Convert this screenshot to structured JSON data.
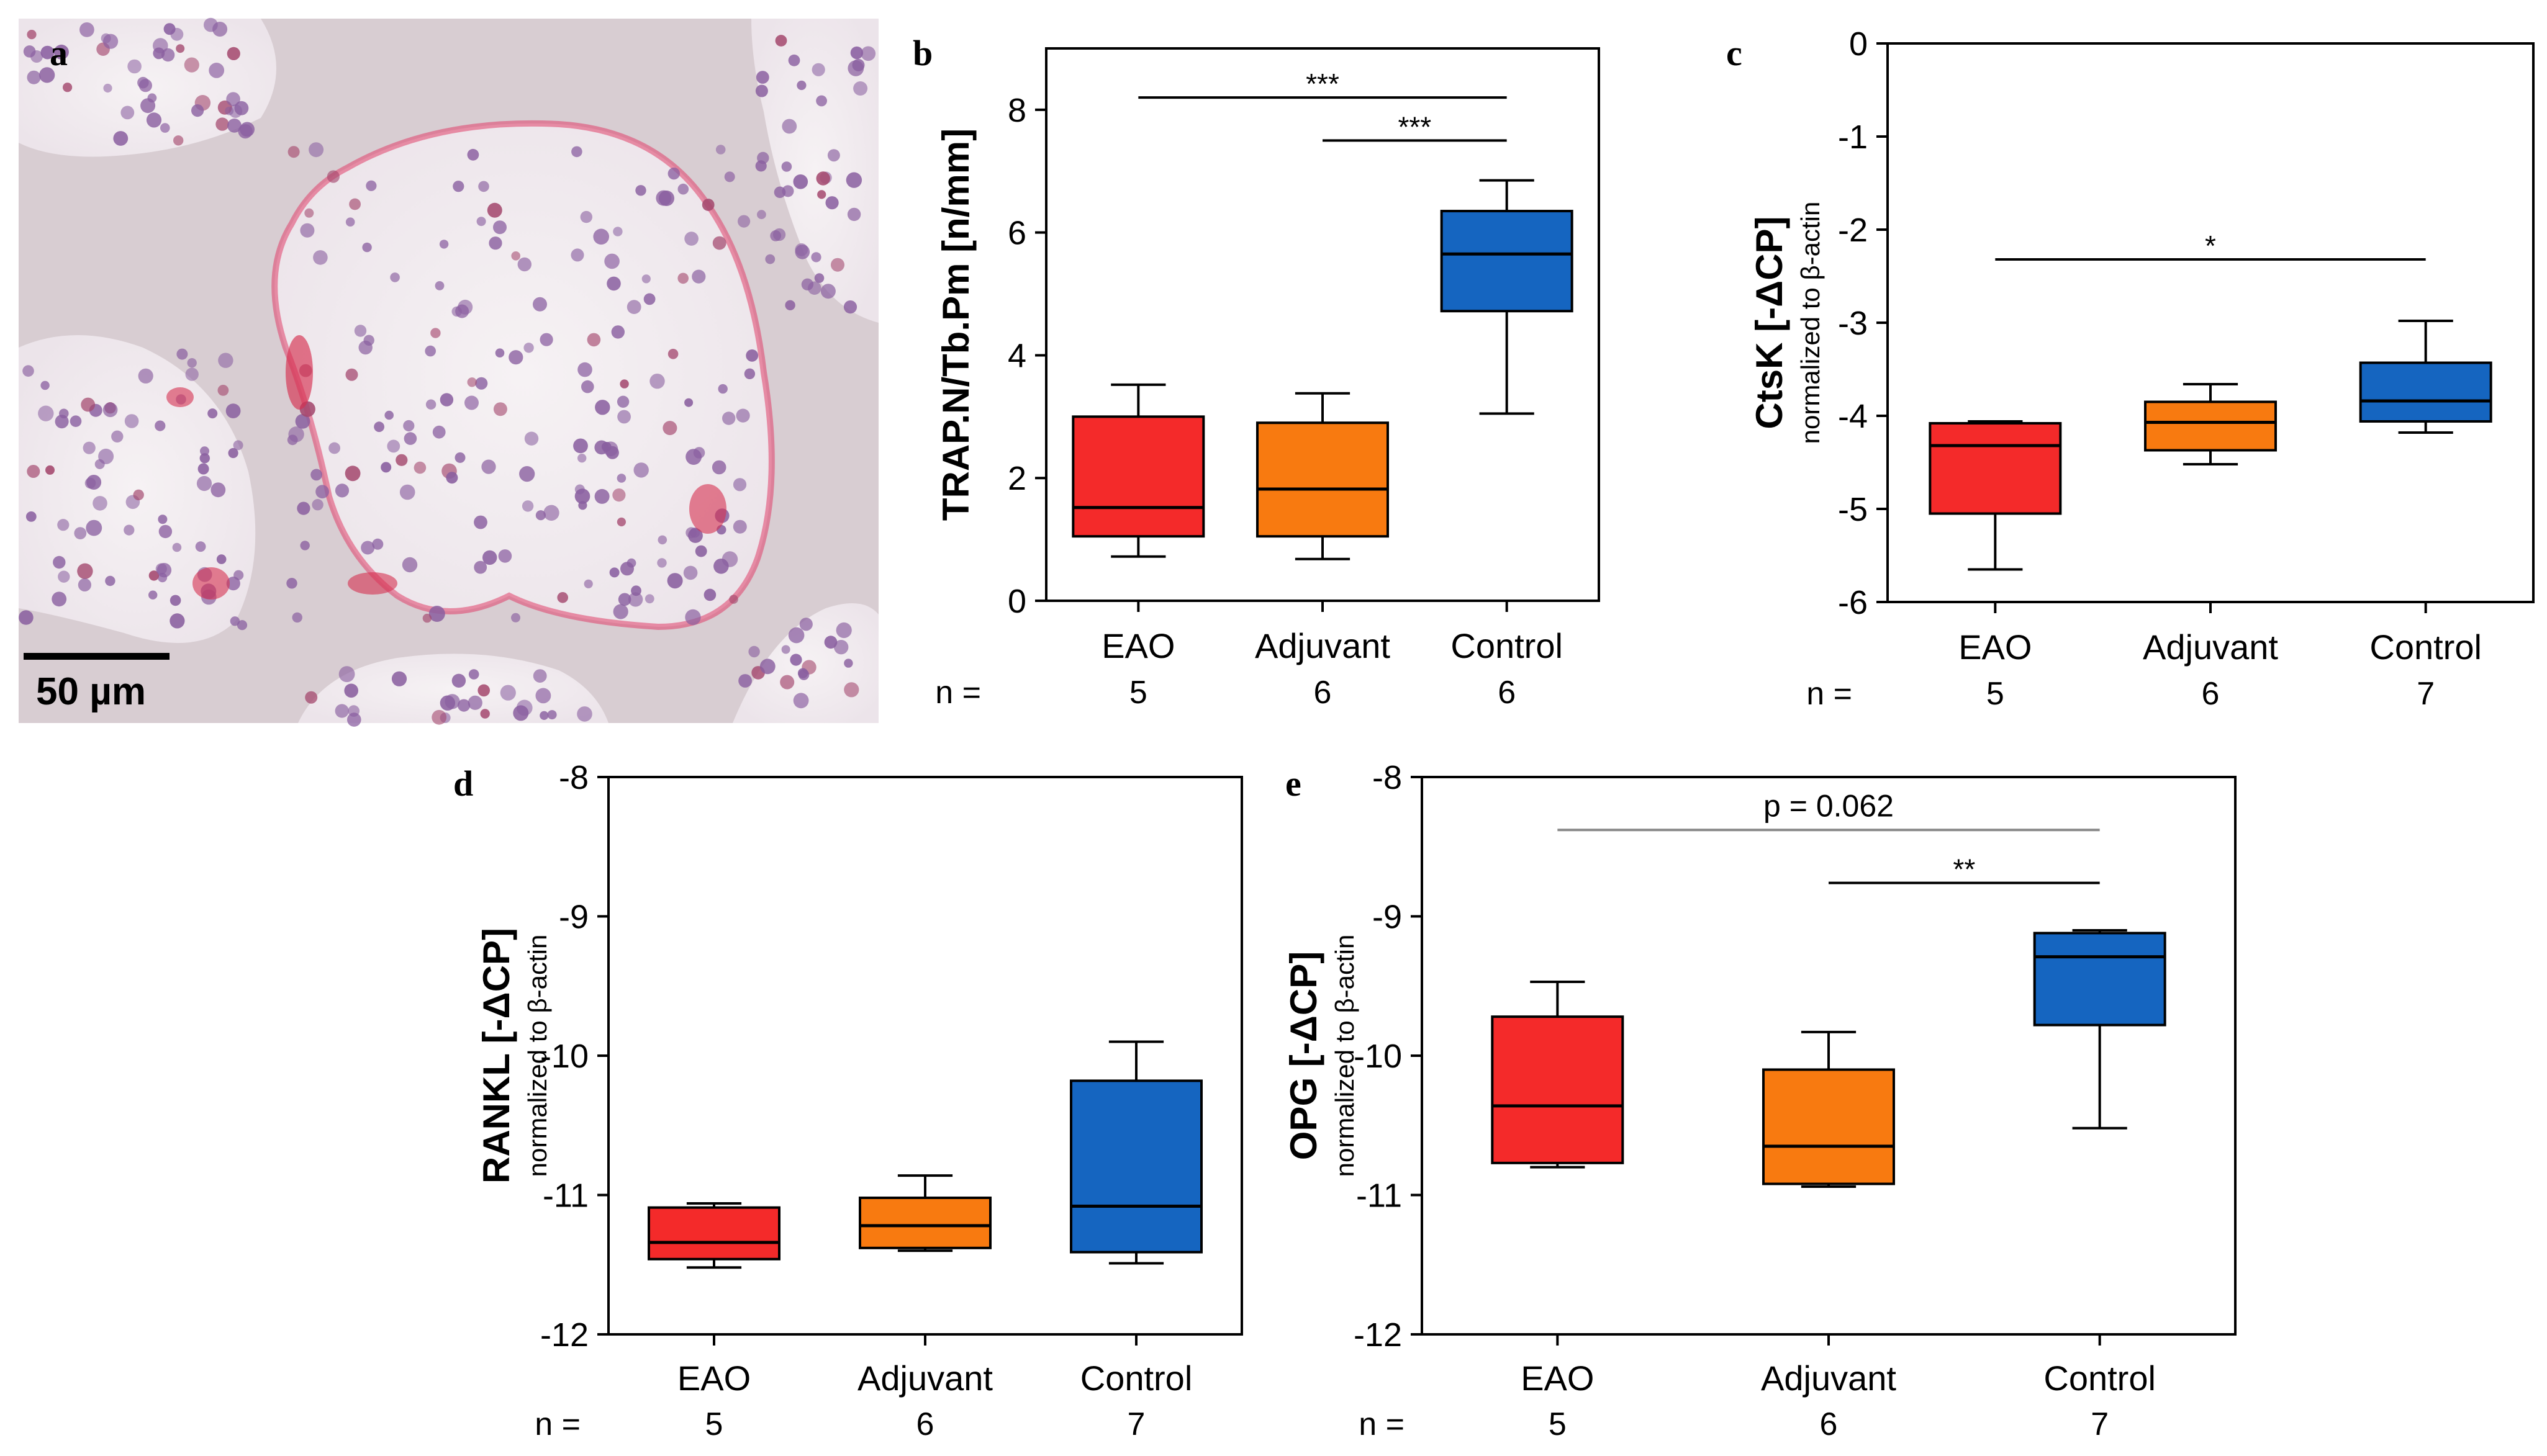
{
  "figure": {
    "micrograph": {
      "letter": "a",
      "scale_bar_label": "50 µm"
    }
  },
  "colors": {
    "eao": "#f42a2a",
    "adjuvant": "#f87a10",
    "control": "#1565c0",
    "significance_bar": "#000000",
    "trend_bar": "#888888"
  },
  "chart_data": [
    {
      "id": "b",
      "type": "box",
      "letter": "b",
      "ylabel": "TRAP.N/Tb.Pm [n/mm]",
      "ylabel2": "",
      "ylim": [
        0,
        9
      ],
      "yticks": [
        0,
        2,
        4,
        6,
        8
      ],
      "n_label": "n =",
      "categories": [
        "EAO",
        "Adjuvant",
        "Control"
      ],
      "n": [
        "5",
        "6",
        "6"
      ],
      "boxes": [
        {
          "group": "EAO",
          "whisker_low": 0.72,
          "q1": 1.05,
          "median": 1.52,
          "q3": 3.0,
          "whisker_high": 3.52
        },
        {
          "group": "Adjuvant",
          "whisker_low": 0.68,
          "q1": 1.05,
          "median": 1.82,
          "q3": 2.9,
          "whisker_high": 3.38
        },
        {
          "group": "Control",
          "whisker_low": 3.05,
          "q1": 4.72,
          "median": 5.65,
          "q3": 6.35,
          "whisker_high": 6.85
        }
      ],
      "significance": [
        {
          "from": "EAO",
          "to": "Control",
          "y": 8.2,
          "label": "***",
          "style": "black"
        },
        {
          "from": "Adjuvant",
          "to": "Control",
          "y": 7.5,
          "label": "***",
          "style": "black"
        }
      ]
    },
    {
      "id": "c",
      "type": "box",
      "letter": "c",
      "ylabel": "CtsK [-ΔCP]",
      "ylabel2": "normalized to β-actin",
      "ylim": [
        -6,
        0
      ],
      "yticks": [
        -6,
        -5,
        -4,
        -3,
        -2,
        -1,
        0
      ],
      "n_label": "n =",
      "categories": [
        "EAO",
        "Adjuvant",
        "Control"
      ],
      "n": [
        "5",
        "6",
        "7"
      ],
      "boxes": [
        {
          "group": "EAO",
          "whisker_low": -5.65,
          "q1": -5.05,
          "median": -4.32,
          "q3": -4.08,
          "whisker_high": -4.06
        },
        {
          "group": "Adjuvant",
          "whisker_low": -4.52,
          "q1": -4.37,
          "median": -4.07,
          "q3": -3.85,
          "whisker_high": -3.66
        },
        {
          "group": "Control",
          "whisker_low": -4.18,
          "q1": -4.06,
          "median": -3.84,
          "q3": -3.43,
          "whisker_high": -2.98
        }
      ],
      "significance": [
        {
          "from": "EAO",
          "to": "Control",
          "y": -2.32,
          "label": "*",
          "style": "black"
        }
      ]
    },
    {
      "id": "d",
      "type": "box",
      "letter": "d",
      "ylabel": "RANKL [-ΔCP]",
      "ylabel2": "normalized to β-actin",
      "ylim": [
        -12,
        -8
      ],
      "yticks": [
        -12,
        -11,
        -10,
        -9,
        -8
      ],
      "n_label": "n =",
      "categories": [
        "EAO",
        "Adjuvant",
        "Control"
      ],
      "n": [
        "5",
        "6",
        "7"
      ],
      "boxes": [
        {
          "group": "EAO",
          "whisker_low": -11.52,
          "q1": -11.46,
          "median": -11.34,
          "q3": -11.09,
          "whisker_high": -11.06
        },
        {
          "group": "Adjuvant",
          "whisker_low": -11.4,
          "q1": -11.38,
          "median": -11.22,
          "q3": -11.02,
          "whisker_high": -10.86
        },
        {
          "group": "Control",
          "whisker_low": -11.49,
          "q1": -11.41,
          "median": -11.08,
          "q3": -10.18,
          "whisker_high": -9.9
        }
      ],
      "significance": []
    },
    {
      "id": "e",
      "type": "box",
      "letter": "e",
      "ylabel": "OPG [-ΔCP]",
      "ylabel2": "normalized to β-actin",
      "ylim": [
        -12,
        -8
      ],
      "yticks": [
        -12,
        -11,
        -10,
        -9,
        -8
      ],
      "n_label": "n =",
      "categories": [
        "EAO",
        "Adjuvant",
        "Control"
      ],
      "n": [
        "5",
        "6",
        "7"
      ],
      "boxes": [
        {
          "group": "EAO",
          "whisker_low": -10.8,
          "q1": -10.77,
          "median": -10.36,
          "q3": -9.72,
          "whisker_high": -9.47
        },
        {
          "group": "Adjuvant",
          "whisker_low": -10.94,
          "q1": -10.92,
          "median": -10.65,
          "q3": -10.1,
          "whisker_high": -9.83
        },
        {
          "group": "Control",
          "whisker_low": -10.52,
          "q1": -9.78,
          "median": -9.29,
          "q3": -9.12,
          "whisker_high": -9.1
        }
      ],
      "significance": [
        {
          "from": "EAO",
          "to": "Control",
          "y": -8.38,
          "label": "p = 0.062",
          "style": "gray"
        },
        {
          "from": "Adjuvant",
          "to": "Control",
          "y": -8.76,
          "label": "**",
          "style": "black"
        }
      ]
    }
  ]
}
